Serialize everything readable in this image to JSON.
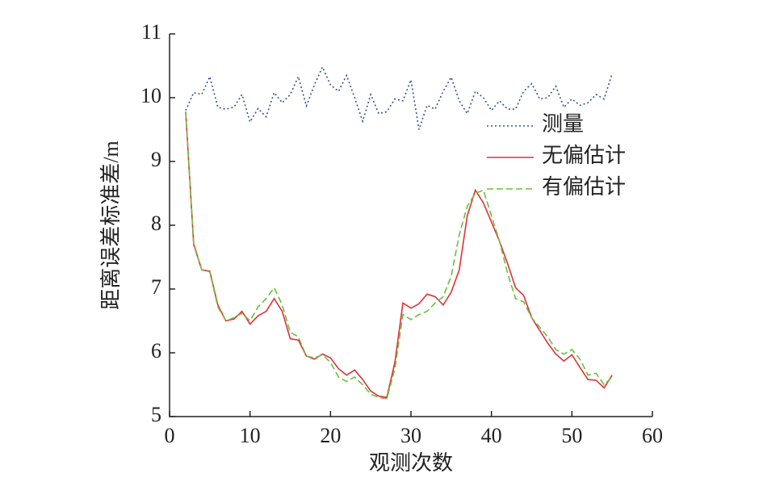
{
  "chart_data": {
    "type": "line",
    "xlabel": "观测次数",
    "ylabel": "距离误差标准差/m",
    "x": [
      2,
      3,
      4,
      5,
      6,
      7,
      8,
      9,
      10,
      11,
      12,
      13,
      14,
      15,
      16,
      17,
      18,
      19,
      20,
      21,
      22,
      23,
      24,
      25,
      26,
      27,
      28,
      29,
      30,
      31,
      32,
      33,
      34,
      35,
      36,
      37,
      38,
      39,
      40,
      41,
      42,
      43,
      44,
      45,
      46,
      47,
      48,
      49,
      50,
      51,
      52,
      53,
      54,
      55
    ],
    "series": [
      {
        "name": "测量",
        "color": "#2f5597",
        "dash": "2,3",
        "values": [
          9.8,
          10.08,
          10.05,
          10.33,
          9.85,
          9.82,
          9.85,
          10.05,
          9.62,
          9.83,
          9.7,
          10.08,
          9.92,
          10.05,
          10.33,
          9.87,
          10.2,
          10.48,
          10.2,
          10.1,
          10.35,
          10.0,
          9.63,
          10.05,
          9.75,
          9.78,
          9.98,
          9.95,
          10.28,
          9.5,
          9.88,
          9.82,
          10.1,
          10.32,
          9.95,
          9.75,
          10.1,
          10.0,
          9.8,
          9.95,
          9.82,
          9.82,
          10.1,
          10.22,
          9.98,
          10.0,
          10.18,
          9.85,
          9.98,
          9.88,
          9.92,
          10.05,
          9.98,
          10.38
        ]
      },
      {
        "name": "无偏估计",
        "color": "#e0303a",
        "dash": "",
        "values": [
          9.78,
          7.7,
          7.3,
          7.28,
          6.75,
          6.5,
          6.53,
          6.65,
          6.45,
          6.58,
          6.65,
          6.85,
          6.65,
          6.22,
          6.2,
          5.95,
          5.9,
          5.98,
          5.92,
          5.75,
          5.65,
          5.73,
          5.58,
          5.4,
          5.32,
          5.3,
          5.85,
          6.78,
          6.7,
          6.77,
          6.92,
          6.88,
          6.75,
          6.95,
          7.3,
          8.15,
          8.55,
          8.35,
          8.05,
          7.75,
          7.4,
          7.02,
          6.9,
          6.55,
          6.35,
          6.15,
          5.98,
          5.87,
          5.97,
          5.77,
          5.58,
          5.57,
          5.45,
          5.65
        ]
      },
      {
        "name": "有偏估计",
        "color": "#6cbf3c",
        "dash": "8,4",
        "values": [
          9.78,
          7.72,
          7.3,
          7.27,
          6.72,
          6.5,
          6.55,
          6.62,
          6.5,
          6.72,
          6.85,
          7.02,
          6.75,
          6.32,
          6.25,
          5.95,
          5.92,
          5.97,
          5.85,
          5.62,
          5.55,
          5.62,
          5.5,
          5.35,
          5.3,
          5.28,
          5.75,
          6.6,
          6.52,
          6.6,
          6.65,
          6.78,
          6.88,
          7.2,
          7.85,
          8.3,
          8.5,
          8.55,
          8.15,
          7.75,
          7.25,
          6.85,
          6.8,
          6.55,
          6.4,
          6.25,
          6.05,
          5.98,
          6.05,
          5.9,
          5.65,
          5.68,
          5.5,
          5.62
        ]
      }
    ],
    "xlim": [
      0,
      60
    ],
    "xticks": [
      0,
      10,
      20,
      30,
      40,
      50,
      60
    ],
    "ylim": [
      5,
      11
    ],
    "yticks": [
      5,
      6,
      7,
      8,
      9,
      10,
      11
    ],
    "legend": "upper right"
  }
}
